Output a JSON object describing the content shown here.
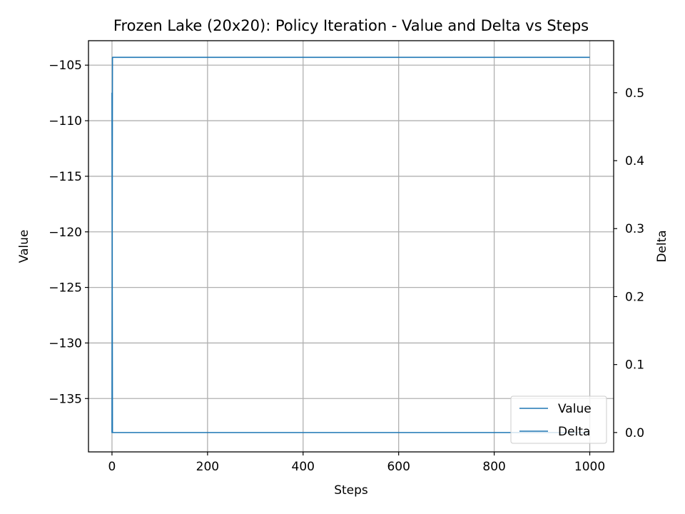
{
  "chart_data": {
    "type": "line",
    "title": "Frozen Lake (20x20): Policy Iteration - Value and Delta vs Steps",
    "xlabel": "Steps",
    "ylabel": "Value",
    "y2label": "Delta",
    "xlim": [
      -49.2,
      1050
    ],
    "ylim": [
      -139.8,
      -102.8
    ],
    "y2lim": [
      -0.0285,
      0.5765
    ],
    "x_ticks": [
      0,
      200,
      400,
      600,
      800,
      1000
    ],
    "y_ticks": [
      -105,
      -110,
      -115,
      -120,
      -125,
      -130,
      -135
    ],
    "y2_ticks": [
      0.0,
      0.1,
      0.2,
      0.3,
      0.4,
      0.5
    ],
    "x_tick_labels": [
      "0",
      "200",
      "400",
      "600",
      "800",
      "1000"
    ],
    "y_tick_labels": [
      "−105",
      "−110",
      "−115",
      "−120",
      "−125",
      "−130",
      "−135"
    ],
    "y2_tick_labels": [
      "0.0",
      "0.1",
      "0.2",
      "0.3",
      "0.4",
      "0.5"
    ],
    "grid": true,
    "legend_position": "lower-right",
    "series": [
      {
        "name": "Value",
        "axis": "left",
        "color": "#1f77b4",
        "x": [
          0,
          1,
          2,
          1000
        ],
        "y": [
          -138.1,
          -104.3,
          -104.3,
          -104.3
        ]
      },
      {
        "name": "Delta",
        "axis": "right",
        "color": "#1f77b4",
        "x": [
          0,
          1,
          2,
          1000
        ],
        "y": [
          0.5,
          0.0,
          0.0,
          0.0
        ]
      }
    ]
  }
}
